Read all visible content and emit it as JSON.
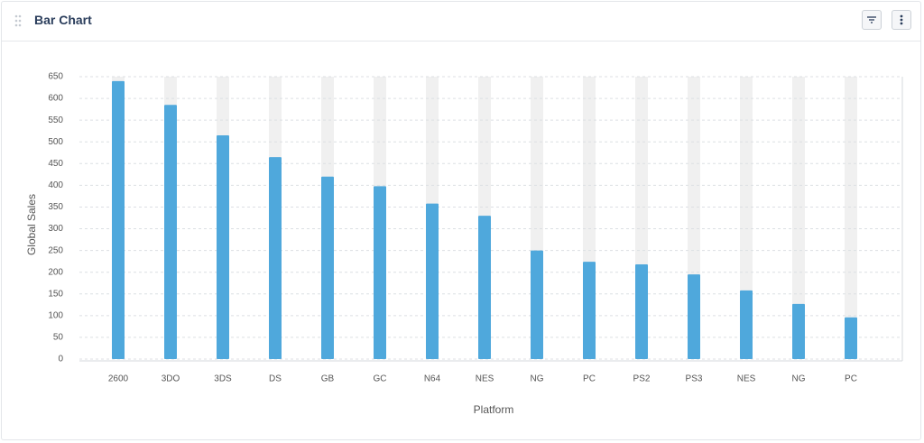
{
  "header": {
    "title": "Bar Chart"
  },
  "chart_data": {
    "type": "bar",
    "x_label": "Platform",
    "y_label": "Global Sales",
    "categories": [
      "2600",
      "3DO",
      "3DS",
      "DS",
      "GB",
      "GC",
      "N64",
      "NES",
      "NG",
      "PC",
      "PS2",
      "PS3",
      "NES",
      "NG",
      "PC"
    ],
    "values": [
      640,
      585,
      515,
      465,
      420,
      398,
      358,
      330,
      250,
      224,
      218,
      195,
      158,
      127,
      96
    ],
    "color": "#4fa8dc",
    "ylim": [
      0,
      650
    ],
    "yticks": [
      0,
      50,
      100,
      150,
      200,
      250,
      300,
      350,
      400,
      450,
      500,
      550,
      600,
      650
    ],
    "grid": true
  }
}
